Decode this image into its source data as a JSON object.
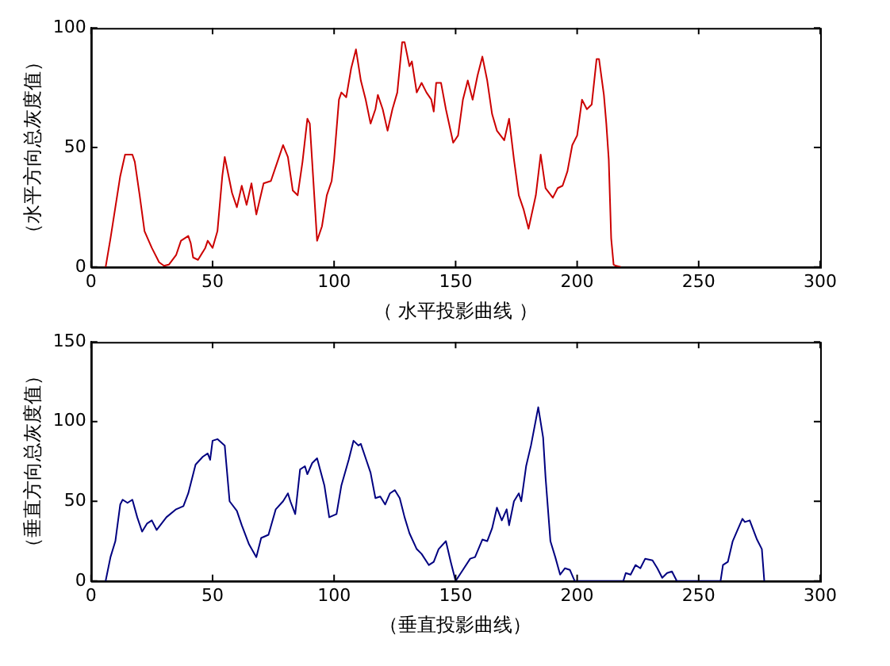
{
  "chart_data": [
    {
      "type": "line",
      "xlabel": "（ 水平投影曲线 ）",
      "ylabel": "（水平方向总灰度值）",
      "xlim": [
        0,
        300
      ],
      "ylim": [
        0,
        100
      ],
      "xticks": [
        0,
        50,
        100,
        150,
        200,
        250,
        300
      ],
      "yticks": [
        0,
        50,
        100
      ],
      "grid": false,
      "legend": false,
      "marker": "none",
      "series": [
        {
          "color": "#cc0000",
          "x": [
            6,
            8,
            10,
            12,
            14,
            17,
            18,
            20,
            22,
            25,
            28,
            30,
            32,
            35,
            37,
            40,
            41,
            42,
            44,
            47,
            48,
            50,
            52,
            54,
            55,
            58,
            60,
            62,
            64,
            66,
            68,
            71,
            74,
            77,
            79,
            81,
            83,
            85,
            87,
            89,
            90,
            93,
            95,
            97,
            99,
            100,
            102,
            103,
            105,
            107,
            109,
            111,
            113,
            115,
            117,
            118,
            120,
            122,
            124,
            126,
            128,
            129,
            131,
            132,
            134,
            136,
            138,
            140,
            141,
            142,
            144,
            146,
            149,
            151,
            153,
            155,
            157,
            159,
            161,
            163,
            165,
            167,
            170,
            172,
            174,
            176,
            178,
            180,
            183,
            185,
            187,
            190,
            192,
            194,
            196,
            198,
            200,
            202,
            204,
            206,
            208,
            209,
            211,
            212,
            213,
            214,
            215,
            216,
            218
          ],
          "values": [
            0,
            12,
            25,
            38,
            47,
            47,
            44,
            30,
            15,
            8,
            2,
            0.5,
            1,
            5,
            11,
            13,
            10,
            4,
            3,
            8,
            11,
            8,
            15,
            38,
            46,
            31,
            25,
            34,
            26,
            35,
            22,
            35,
            36,
            45,
            51,
            46,
            32,
            30,
            44,
            62,
            60,
            11,
            17,
            30,
            36,
            45,
            70,
            73,
            71,
            83,
            91,
            78,
            70,
            60,
            66,
            72,
            66,
            57,
            66,
            73,
            94,
            94,
            84,
            86,
            73,
            77,
            73,
            70,
            65,
            77,
            77,
            66,
            52,
            55,
            70,
            78,
            70,
            80,
            88,
            78,
            64,
            57,
            53,
            62,
            45,
            30,
            24,
            16,
            30,
            47,
            33,
            29,
            33,
            34,
            40,
            51,
            55,
            70,
            66,
            68,
            87,
            87,
            72,
            60,
            45,
            12,
            1,
            0.5,
            0
          ]
        }
      ]
    },
    {
      "type": "line",
      "xlabel": "（垂直投影曲线）",
      "ylabel": "（垂直方向总灰度值）",
      "xlim": [
        0,
        300
      ],
      "ylim": [
        0,
        150
      ],
      "xticks": [
        0,
        50,
        100,
        150,
        200,
        250,
        300
      ],
      "yticks": [
        0,
        50,
        100,
        150
      ],
      "grid": false,
      "legend": false,
      "marker": "none",
      "series": [
        {
          "color": "#000080",
          "x": [
            6,
            8,
            10,
            12,
            13,
            15,
            17,
            19,
            21,
            23,
            25,
            27,
            29,
            31,
            35,
            38,
            40,
            43,
            46,
            48,
            49,
            50,
            52,
            55,
            57,
            60,
            62,
            65,
            68,
            70,
            73,
            76,
            79,
            81,
            82,
            84,
            86,
            88,
            89,
            91,
            93,
            96,
            98,
            101,
            103,
            106,
            108,
            110,
            111,
            113,
            115,
            117,
            119,
            121,
            123,
            125,
            127,
            129,
            131,
            134,
            136,
            139,
            141,
            143,
            146,
            148,
            150,
            153,
            156,
            158,
            161,
            163,
            165,
            167,
            169,
            171,
            172,
            174,
            176,
            177,
            179,
            181,
            183,
            184,
            186,
            187,
            189,
            191,
            193,
            195,
            197,
            199,
            219,
            220,
            222,
            224,
            226,
            228,
            231,
            233,
            235,
            237,
            239,
            241,
            259,
            260,
            262,
            264,
            266,
            268,
            269,
            271,
            274,
            276,
            277
          ],
          "values": [
            0,
            15,
            25,
            48,
            51,
            49,
            51,
            40,
            31,
            36,
            38,
            32,
            36,
            40,
            45,
            47,
            55,
            73,
            78,
            80,
            76,
            88,
            89,
            85,
            50,
            44,
            35,
            23,
            15,
            27,
            29,
            45,
            50,
            55,
            50,
            42,
            70,
            72,
            67,
            74,
            77,
            60,
            40,
            42,
            60,
            76,
            88,
            85,
            86,
            77,
            68,
            52,
            53,
            48,
            55,
            57,
            52,
            40,
            30,
            20,
            17,
            10,
            12,
            20,
            25,
            12,
            0,
            7,
            14,
            15,
            26,
            25,
            33,
            46,
            38,
            45,
            35,
            50,
            55,
            50,
            72,
            85,
            101,
            109,
            90,
            65,
            25,
            15,
            4,
            8,
            7,
            0,
            0,
            5,
            4,
            10,
            8,
            14,
            13,
            8,
            2,
            5,
            6,
            0,
            0,
            10,
            12,
            25,
            32,
            39,
            37,
            38,
            26,
            20,
            0
          ]
        }
      ]
    }
  ]
}
